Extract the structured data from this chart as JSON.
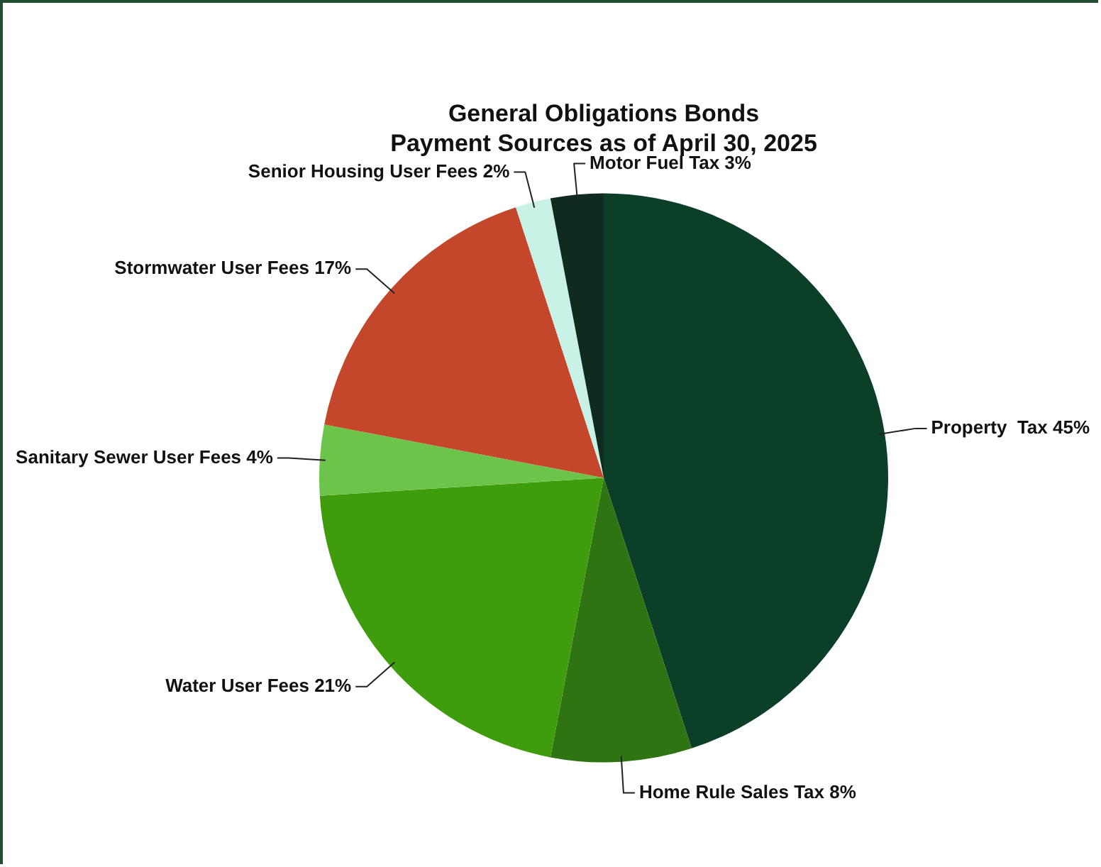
{
  "chart_data": {
    "type": "pie",
    "title": "General Obligations Bonds",
    "subtitle": "Payment Sources as of April 30, 2025",
    "categories": [
      "Property  Tax",
      "Home Rule Sales Tax",
      "Water User Fees",
      "Sanitary Sewer User Fees",
      "Stormwater User Fees",
      "Senior Housing User Fees",
      "Motor Fuel Tax"
    ],
    "values": [
      45,
      8,
      21,
      4,
      17,
      2,
      3
    ],
    "value_labels": [
      "45%",
      "8%",
      "21%",
      "4%",
      "17%",
      "2%",
      "3%"
    ],
    "colors": [
      "#0c3f27",
      "#2f7312",
      "#3f9c0c",
      "#6cc54a",
      "#c5472b",
      "#c9f2e6",
      "#0f2b1f"
    ],
    "legend": false
  }
}
